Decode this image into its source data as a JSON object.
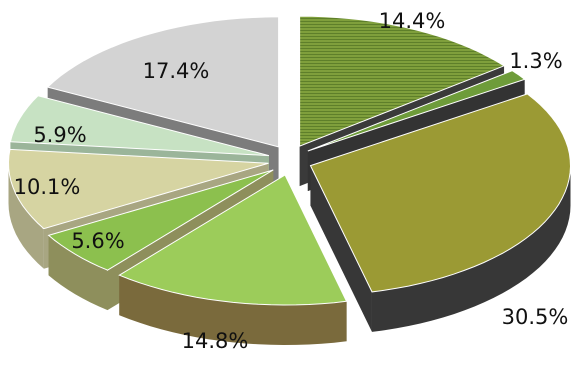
{
  "chart_data": {
    "type": "pie",
    "style": "3d-exploded",
    "title": "",
    "legend": "none",
    "slices": [
      {
        "value": 14.4,
        "label": "14.4%",
        "color": "#7f9f3c",
        "side": "#3a3a3a",
        "pattern": "stripes"
      },
      {
        "value": 1.3,
        "label": "1.3%",
        "color": "#6e9c3a",
        "side": "#333333"
      },
      {
        "value": 30.5,
        "label": "30.5%",
        "color": "#9b9a34",
        "side": "#373737"
      },
      {
        "value": 14.8,
        "label": "14.8%",
        "color": "#9ccc5a",
        "side": "#7a6a3c"
      },
      {
        "value": 5.6,
        "label": "5.6%",
        "color": "#8cc04e",
        "side": "#8e8f5c"
      },
      {
        "value": 10.1,
        "label": "10.1%",
        "color": "#d6d4a2",
        "side": "#a8a682"
      },
      {
        "value": 5.9,
        "label": "5.9%",
        "color": "#c7e2c3",
        "side": "#9bb59a"
      },
      {
        "value": 17.4,
        "label": "17.4%",
        "color": "#d3d3d3",
        "side": "#7c7c7c"
      }
    ]
  }
}
